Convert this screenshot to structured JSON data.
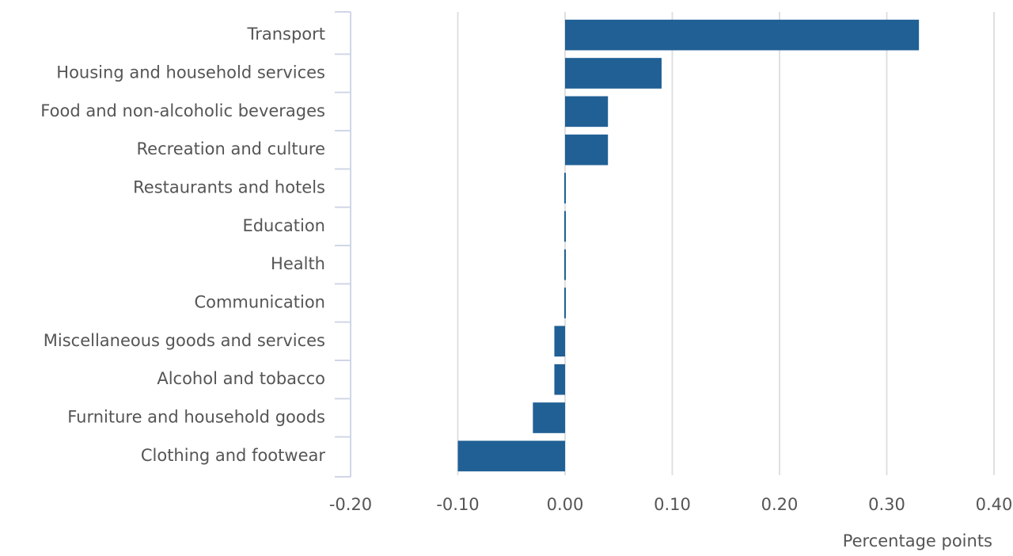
{
  "chart_data": {
    "type": "hbar",
    "categories": [
      "Transport",
      "Housing and household services",
      "Food and non-alcoholic beverages",
      "Recreation and culture",
      "Restaurants and hotels",
      "Education",
      "Health",
      "Communication",
      "Miscellaneous goods and services",
      "Alcohol and tobacco",
      "Furniture and household goods",
      "Clothing and footwear"
    ],
    "values": [
      0.33,
      0.09,
      0.04,
      0.04,
      0,
      0,
      0,
      0,
      -0.01,
      -0.01,
      -0.03,
      -0.1
    ],
    "color": "#206095",
    "xlim": [
      -0.2,
      0.4
    ],
    "xticks": [
      {
        "value": -0.2,
        "label": "-0.20"
      },
      {
        "value": -0.1,
        "label": "-0.10"
      },
      {
        "value": 0,
        "label": "0.00"
      },
      {
        "value": 0.1,
        "label": "0.10"
      },
      {
        "value": 0.2,
        "label": "0.20"
      },
      {
        "value": 0.3,
        "label": "0.30"
      },
      {
        "value": 0.4,
        "label": "0.40"
      }
    ],
    "xlabel": "Percentage points",
    "grid": true
  }
}
